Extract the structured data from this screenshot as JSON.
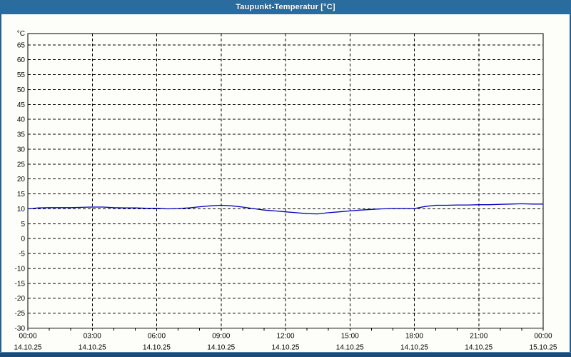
{
  "window": {
    "title": "Taupunkt-Temperatur [°C]"
  },
  "colors": {
    "titlebar": "#2b6c9e",
    "window_border": "#24608f",
    "bottom_bar": "#1c4a77",
    "series_line": "#0000c0",
    "grid": "#000000",
    "background": "#fdfefa",
    "title_text": "#ffffff",
    "label_text": "#000000"
  },
  "chart_data": {
    "type": "line",
    "title": "Taupunkt-Temperatur [°C]",
    "ylabel": "°C",
    "xlabel": "",
    "legend": "none",
    "grid_style": "dashed",
    "ylim": [
      -30,
      68.8
    ],
    "yticks": [
      65,
      60,
      55,
      50,
      45,
      40,
      35,
      30,
      25,
      20,
      15,
      10,
      5,
      0,
      -5,
      -10,
      -15,
      -20,
      -25,
      -30
    ],
    "xlim": [
      0,
      24
    ],
    "x_minor_step_hours": 1,
    "x_major_ticks": [
      {
        "hour": 0,
        "time": "00:00",
        "date": "14.10.25"
      },
      {
        "hour": 3,
        "time": "03:00",
        "date": "14.10.25"
      },
      {
        "hour": 6,
        "time": "06:00",
        "date": "14.10.25"
      },
      {
        "hour": 9,
        "time": "09:00",
        "date": "14.10.25"
      },
      {
        "hour": 12,
        "time": "12:00",
        "date": "14.10.25"
      },
      {
        "hour": 15,
        "time": "15:00",
        "date": "14.10.25"
      },
      {
        "hour": 18,
        "time": "18:00",
        "date": "14.10.25"
      },
      {
        "hour": 21,
        "time": "21:00",
        "date": "14.10.25"
      },
      {
        "hour": 24,
        "time": "00:00",
        "date": "15.10.25"
      }
    ],
    "series": [
      {
        "name": "Taupunkt-Temperatur",
        "color": "#0000c0",
        "x": [
          0,
          0.5,
          1,
          1.5,
          2,
          2.5,
          3,
          3.5,
          4,
          4.5,
          5,
          5.5,
          6,
          6.5,
          7,
          7.5,
          8,
          8.5,
          9,
          9.5,
          10,
          10.5,
          11,
          11.5,
          12,
          12.5,
          13,
          13.5,
          14,
          14.5,
          15,
          15.5,
          16,
          16.5,
          17,
          17.5,
          18,
          18.5,
          19,
          19.5,
          20,
          20.5,
          21,
          21.5,
          22,
          22.5,
          23,
          23.5,
          24
        ],
        "values": [
          10.0,
          10.3,
          10.4,
          10.4,
          10.4,
          10.5,
          10.6,
          10.6,
          10.4,
          10.3,
          10.3,
          10.2,
          10.2,
          10.0,
          10.1,
          10.3,
          10.7,
          11.0,
          11.2,
          11.0,
          10.6,
          10.1,
          9.6,
          9.3,
          9.0,
          8.7,
          8.4,
          8.3,
          8.7,
          9.0,
          9.3,
          9.6,
          9.8,
          10.0,
          10.1,
          10.1,
          10.1,
          10.8,
          11.2,
          11.2,
          11.3,
          11.3,
          11.4,
          11.4,
          11.5,
          11.6,
          11.7,
          11.6,
          11.6
        ]
      }
    ]
  }
}
